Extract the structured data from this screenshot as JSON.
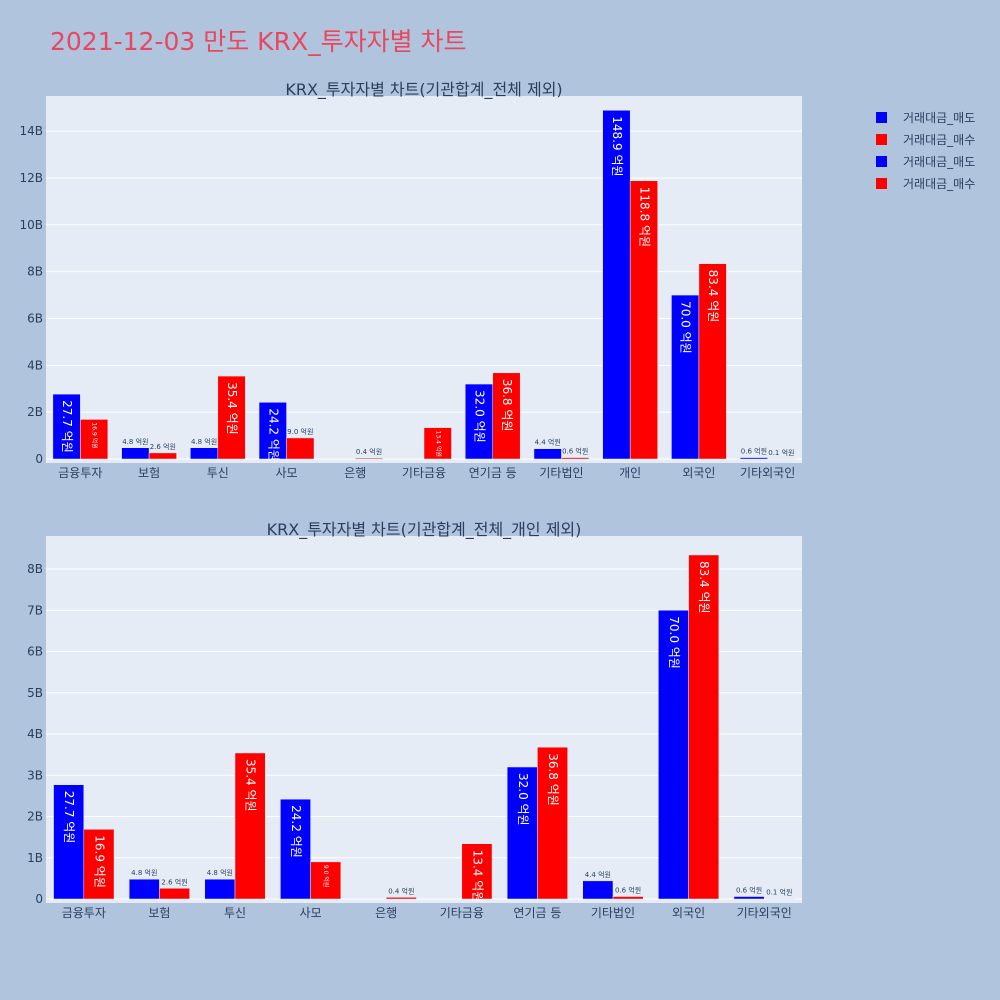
{
  "title": "2021-12-03 만도 KRX_투자자별 차트",
  "colors": {
    "sell": "#0000ff",
    "buy": "#ff0000",
    "plot_bg": "#e5ecf6",
    "page_bg": "#b0c4de"
  },
  "legend": [
    {
      "label": "거래대금_매도",
      "color": "#0000ff"
    },
    {
      "label": "거래대금_매수",
      "color": "#ff0000"
    },
    {
      "label": "거래대금_매도",
      "color": "#0000ff"
    },
    {
      "label": "거래대금_매수",
      "color": "#ff0000"
    }
  ],
  "chart_data": [
    {
      "type": "bar",
      "title": "KRX_투자자별 차트(기관합계_전체 제외)",
      "categories": [
        "금융투자",
        "보험",
        "투신",
        "사모",
        "은행",
        "기타금융",
        "연기금 등",
        "기타법인",
        "개인",
        "외국인",
        "기타외국인"
      ],
      "ylim": [
        0,
        15.5
      ],
      "yticks": [
        0,
        2,
        4,
        6,
        8,
        10,
        12,
        14
      ],
      "ytick_labels": [
        "0",
        "2B",
        "4B",
        "6B",
        "8B",
        "10B",
        "12B",
        "14B"
      ],
      "series": [
        {
          "name": "거래대금_매도",
          "values": [
            2.77,
            0.48,
            0.48,
            2.42,
            0.0,
            0.0,
            3.2,
            0.44,
            14.89,
            7.0,
            0.06
          ],
          "labels": [
            "27.7 억원",
            "4.8 억원",
            "4.8 억원",
            "24.2 억원",
            "",
            "",
            "32.0 억원",
            "4.4 억원",
            "148.9 억원",
            "70.0 억원",
            "0.6 억원"
          ]
        },
        {
          "name": "거래대금_매수",
          "values": [
            1.69,
            0.26,
            3.54,
            0.9,
            0.04,
            1.34,
            3.68,
            0.06,
            11.88,
            8.34,
            0.01
          ],
          "labels": [
            "16.9 억원",
            "2.6 억원",
            "35.4 억원",
            "9.0 억원",
            "0.4 억원",
            "13.4 억원",
            "36.8 억원",
            "0.6 억원",
            "118.8 억원",
            "83.4 억원",
            "0.1 억원"
          ]
        }
      ]
    },
    {
      "type": "bar",
      "title": "KRX_투자자별 차트(기관합계_전체_개인 제외)",
      "categories": [
        "금융투자",
        "보험",
        "투신",
        "사모",
        "은행",
        "기타금융",
        "연기금 등",
        "기타법인",
        "외국인",
        "기타외국인"
      ],
      "ylim": [
        0,
        8.8
      ],
      "yticks": [
        0,
        1,
        2,
        3,
        4,
        5,
        6,
        7,
        8
      ],
      "ytick_labels": [
        "0",
        "1B",
        "2B",
        "3B",
        "4B",
        "5B",
        "6B",
        "7B",
        "8B"
      ],
      "series": [
        {
          "name": "거래대금_매도",
          "values": [
            2.77,
            0.48,
            0.48,
            2.42,
            0.0,
            0.0,
            3.2,
            0.44,
            7.0,
            0.06
          ],
          "labels": [
            "27.7 억원",
            "4.8 억원",
            "4.8 억원",
            "24.2 억원",
            "",
            "",
            "32.0 억원",
            "4.4 억원",
            "70.0 억원",
            "0.6 억원"
          ]
        },
        {
          "name": "거래대금_매수",
          "values": [
            1.69,
            0.26,
            3.54,
            0.9,
            0.04,
            1.34,
            3.68,
            0.06,
            8.34,
            0.01
          ],
          "labels": [
            "16.9 억원",
            "2.6 억원",
            "35.4 억원",
            "9.0 억원",
            "0.4 억원",
            "13.4 억원",
            "36.8 억원",
            "0.6 억원",
            "83.4 억원",
            "0.1 억원"
          ]
        }
      ]
    }
  ]
}
